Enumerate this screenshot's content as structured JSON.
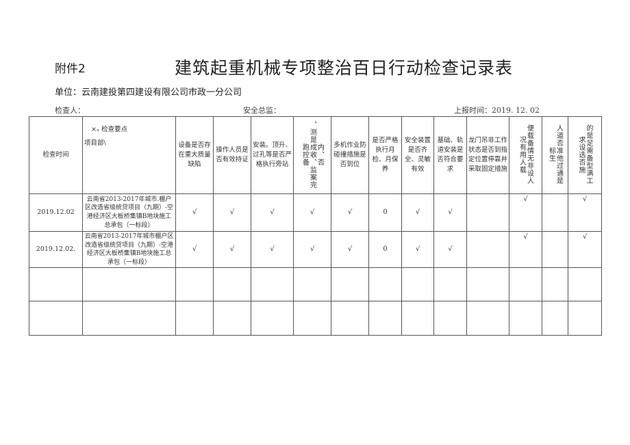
{
  "annex": "附件2",
  "title": "建筑起重机械专项整治百日行动检查记录表",
  "unit": "单位：云南建投第四建设有限公司市政一分公司",
  "inspector_label": "检查人：",
  "safety_director_label": "安全总监：",
  "report_time": "上报时间：2019. 12. 02",
  "header": {
    "time": "检查时间",
    "diag_top": "×ₓ        检查要点",
    "diag_bottom": "项目部\\",
    "cols": [
      "设备是否存在重大质量缺陷",
      "操作人员是否有效持证",
      "安装。顶升、过孔等是否严格执行旁站",
      null,
      "多机作业防碰撞措施是否到位",
      "是否严格执行月检、月保养",
      "安全装置是否齐全、灵敏有效",
      "基础、轨道安装是否符合要求",
      "龙门吊非工作状态是否到指定位置停靠并采取固定措施"
    ],
    "vert_cols": {
      "c6": [
        "、测是成收、监案完跑控备",
        "内、否"
      ],
      "c11": [
        "便载备情无非设人",
        "况有用人载"
      ],
      "c12": [
        "人道否准他过通是",
        "标生"
      ],
      "c13": [
        "的是足需备型满工",
        "求设选否施"
      ]
    }
  },
  "rows": [
    {
      "time": "2019.12.02",
      "project": "云南省2013-2017年城市.棚户区改造省级统贷项目（九期）-空港经济区大板桥集镇B地块施工总承包（一标段）",
      "values": [
        "√",
        "√",
        "√",
        "√",
        "√",
        "0",
        "√",
        "√",
        "",
        "√",
        "",
        "√"
      ]
    },
    {
      "time": "2019.12.02.",
      "project": "云南省2013-2017年城市棚户区改造省级统贷项目（九期）-空港经济区大板桥集镇B地块施工总承包（一标段）",
      "values": [
        "√",
        "√",
        "√",
        "√",
        "√",
        "0",
        "√",
        "√",
        "",
        "√",
        "",
        "√"
      ]
    }
  ]
}
